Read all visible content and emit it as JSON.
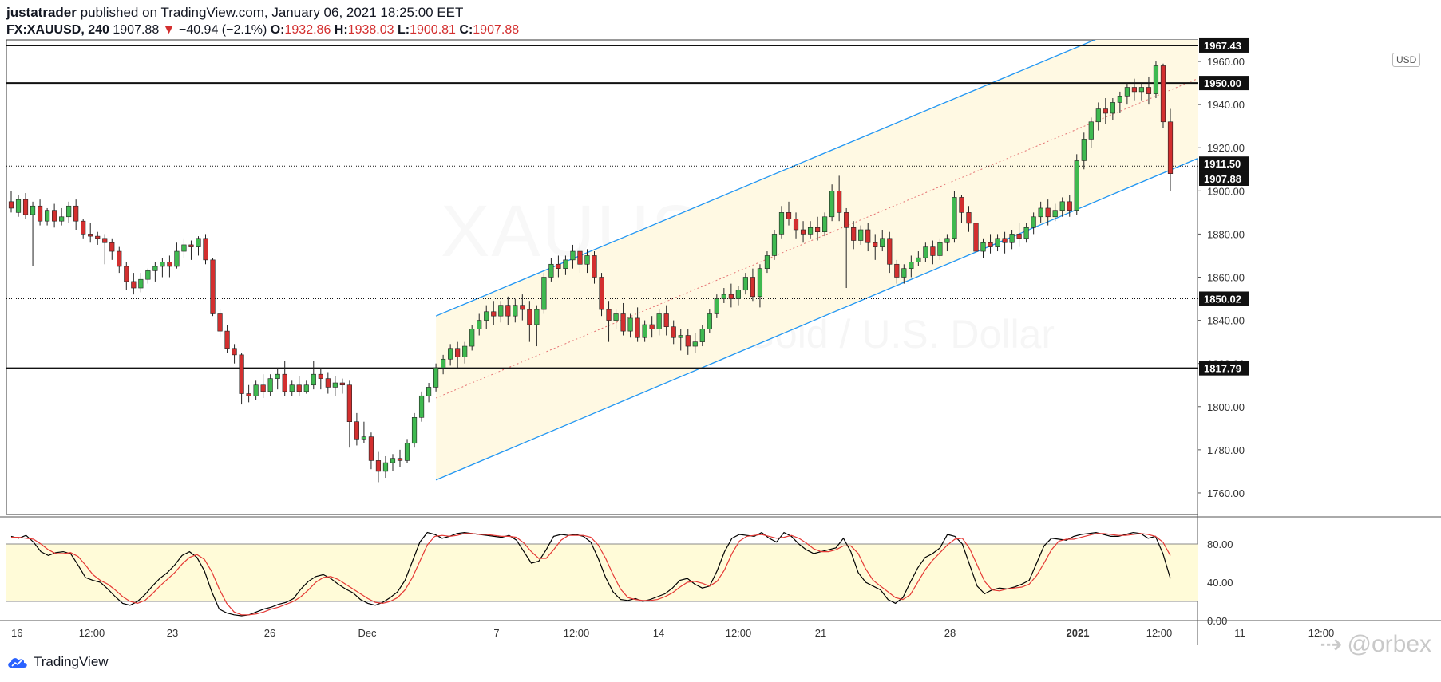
{
  "header": {
    "author": "justatrader",
    "published_text": "published on TradingView.com, January 06, 2021 18:25:00 EET",
    "symbol": "FX:XAUUSD, 240",
    "last": "1907.88",
    "change_arrow": "▼",
    "change": "−40.94 (−2.1%)",
    "open_label": "O:",
    "open": "1932.86",
    "high_label": "H:",
    "high": "1938.03",
    "low_label": "L:",
    "low": "1900.81",
    "close_label": "C:",
    "close": "1907.88"
  },
  "watermark": {
    "symbol": "XAUUSD",
    "description": "Gold / U.S. Dollar"
  },
  "currency_badge": "USD",
  "footer": {
    "brand": "TradingView",
    "credit": "@orbex"
  },
  "colors": {
    "up": "#26a69a",
    "up_body": "#3fb950",
    "down": "#d32f2f",
    "channel_line": "#2196f3",
    "channel_fill": "#fff9e3",
    "stoch_k": "#000000",
    "stoch_d": "#e53935",
    "stoch_band": "#fffbd8"
  },
  "chart_data": {
    "type": "candlestick",
    "symbol": "FX:XAUUSD",
    "interval": "240",
    "ylim": [
      1750,
      1970
    ],
    "y_ticks": [
      1760,
      1780,
      1800,
      1820,
      1840,
      1860,
      1880,
      1900,
      1920,
      1940,
      1960
    ],
    "x_ticks": [
      "16",
      "12:00",
      "23",
      "26",
      "Dec",
      "7",
      "12:00",
      "14",
      "12:00",
      "21",
      "28",
      "2021",
      "12:00",
      "11",
      "12:00"
    ],
    "price_labels": [
      "1967.43",
      "1950.00",
      "1911.50",
      "1907.88",
      "1850.02",
      "1817.79"
    ],
    "horizontal_levels": [
      {
        "price": 1967.43,
        "style": "solid"
      },
      {
        "price": 1950.0,
        "style": "solid"
      },
      {
        "price": 1911.5,
        "style": "dotted"
      },
      {
        "price": 1850.02,
        "style": "dotted"
      },
      {
        "price": 1817.79,
        "style": "solid"
      }
    ],
    "channel": {
      "upper": [
        [
          0,
          1842
        ],
        [
          100,
          1990
        ]
      ],
      "lower": [
        [
          0,
          1766
        ],
        [
          100,
          1915
        ]
      ],
      "mid": [
        [
          0,
          1804
        ],
        [
          100,
          1952
        ]
      ],
      "start_bar": 59
    },
    "candles": [
      [
        1895,
        1900,
        1892,
        1890
      ],
      [
        1890,
        1898,
        1896,
        1888
      ],
      [
        1896,
        1899,
        1889,
        1887
      ],
      [
        1889,
        1895,
        1893,
        1865
      ],
      [
        1893,
        1896,
        1886,
        1884
      ],
      [
        1886,
        1892,
        1891,
        1884
      ],
      [
        1891,
        1894,
        1886,
        1883
      ],
      [
        1886,
        1892,
        1888,
        1884
      ],
      [
        1888,
        1895,
        1893,
        1885
      ],
      [
        1893,
        1896,
        1886,
        1882
      ],
      [
        1886,
        1887,
        1880,
        1878
      ],
      [
        1880,
        1885,
        1879,
        1876
      ],
      [
        1879,
        1881,
        1878,
        1875
      ],
      [
        1878,
        1880,
        1876,
        1866
      ],
      [
        1876,
        1878,
        1872,
        1868
      ],
      [
        1872,
        1874,
        1865,
        1862
      ],
      [
        1865,
        1867,
        1858,
        1854
      ],
      [
        1858,
        1862,
        1855,
        1852
      ],
      [
        1855,
        1862,
        1859,
        1853
      ],
      [
        1859,
        1864,
        1863,
        1857
      ],
      [
        1863,
        1867,
        1865,
        1858
      ],
      [
        1865,
        1869,
        1867,
        1860
      ],
      [
        1867,
        1870,
        1865,
        1860
      ],
      [
        1865,
        1876,
        1872,
        1864
      ],
      [
        1872,
        1878,
        1875,
        1869
      ],
      [
        1875,
        1877,
        1874,
        1868
      ],
      [
        1874,
        1879,
        1878,
        1870
      ],
      [
        1878,
        1880,
        1868,
        1866
      ],
      [
        1868,
        1869,
        1843,
        1842
      ],
      [
        1843,
        1845,
        1835,
        1832
      ],
      [
        1835,
        1838,
        1827,
        1825
      ],
      [
        1827,
        1829,
        1824,
        1820
      ],
      [
        1824,
        1825,
        1806,
        1801
      ],
      [
        1806,
        1810,
        1805,
        1802
      ],
      [
        1805,
        1812,
        1810,
        1803
      ],
      [
        1810,
        1815,
        1807,
        1804
      ],
      [
        1807,
        1815,
        1813,
        1805
      ],
      [
        1813,
        1818,
        1815,
        1808
      ],
      [
        1815,
        1821,
        1807,
        1805
      ],
      [
        1807,
        1812,
        1810,
        1805
      ],
      [
        1810,
        1814,
        1807,
        1805
      ],
      [
        1807,
        1812,
        1810,
        1806
      ],
      [
        1810,
        1821,
        1815,
        1808
      ],
      [
        1815,
        1818,
        1813,
        1808
      ],
      [
        1813,
        1816,
        1809,
        1806
      ],
      [
        1809,
        1814,
        1811,
        1805
      ],
      [
        1811,
        1813,
        1810,
        1806
      ],
      [
        1810,
        1812,
        1793,
        1781
      ],
      [
        1793,
        1797,
        1785,
        1782
      ],
      [
        1785,
        1793,
        1786,
        1783
      ],
      [
        1786,
        1788,
        1775,
        1771
      ],
      [
        1775,
        1779,
        1770,
        1765
      ],
      [
        1770,
        1777,
        1774,
        1767
      ],
      [
        1774,
        1778,
        1776,
        1770
      ],
      [
        1776,
        1780,
        1775,
        1772
      ],
      [
        1775,
        1785,
        1783,
        1774
      ],
      [
        1783,
        1797,
        1795,
        1781
      ],
      [
        1795,
        1807,
        1805,
        1793
      ],
      [
        1805,
        1811,
        1809,
        1802
      ],
      [
        1809,
        1820,
        1818,
        1807
      ],
      [
        1818,
        1824,
        1822,
        1815
      ],
      [
        1822,
        1829,
        1827,
        1819
      ],
      [
        1827,
        1830,
        1823,
        1818
      ],
      [
        1823,
        1830,
        1828,
        1820
      ],
      [
        1828,
        1838,
        1836,
        1826
      ],
      [
        1836,
        1843,
        1840,
        1833
      ],
      [
        1840,
        1847,
        1844,
        1836
      ],
      [
        1844,
        1849,
        1842,
        1838
      ],
      [
        1842,
        1849,
        1847,
        1839
      ],
      [
        1847,
        1851,
        1842,
        1838
      ],
      [
        1842,
        1850,
        1847,
        1839
      ],
      [
        1847,
        1852,
        1845,
        1840
      ],
      [
        1845,
        1849,
        1838,
        1830
      ],
      [
        1838,
        1847,
        1845,
        1828
      ],
      [
        1845,
        1862,
        1860,
        1843
      ],
      [
        1860,
        1869,
        1866,
        1858
      ],
      [
        1866,
        1870,
        1864,
        1860
      ],
      [
        1864,
        1870,
        1868,
        1861
      ],
      [
        1868,
        1875,
        1872,
        1864
      ],
      [
        1872,
        1876,
        1866,
        1862
      ],
      [
        1866,
        1873,
        1870,
        1862
      ],
      [
        1870,
        1872,
        1860,
        1857
      ],
      [
        1860,
        1862,
        1845,
        1842
      ],
      [
        1845,
        1849,
        1840,
        1830
      ],
      [
        1840,
        1845,
        1843,
        1836
      ],
      [
        1843,
        1848,
        1835,
        1833
      ],
      [
        1835,
        1843,
        1841,
        1832
      ],
      [
        1841,
        1846,
        1832,
        1830
      ],
      [
        1832,
        1840,
        1838,
        1830
      ],
      [
        1838,
        1842,
        1836,
        1832
      ],
      [
        1836,
        1845,
        1843,
        1833
      ],
      [
        1843,
        1847,
        1837,
        1833
      ],
      [
        1837,
        1840,
        1832,
        1829
      ],
      [
        1832,
        1836,
        1833,
        1826
      ],
      [
        1833,
        1836,
        1828,
        1824
      ],
      [
        1828,
        1834,
        1830,
        1825
      ],
      [
        1830,
        1838,
        1836,
        1828
      ],
      [
        1836,
        1845,
        1843,
        1834
      ],
      [
        1843,
        1852,
        1850,
        1841
      ],
      [
        1850,
        1855,
        1852,
        1848
      ],
      [
        1852,
        1857,
        1850,
        1846
      ],
      [
        1850,
        1856,
        1854,
        1847
      ],
      [
        1854,
        1862,
        1860,
        1852
      ],
      [
        1860,
        1864,
        1851,
        1849
      ],
      [
        1851,
        1866,
        1864,
        1846
      ],
      [
        1864,
        1872,
        1870,
        1862
      ],
      [
        1870,
        1882,
        1880,
        1868
      ],
      [
        1880,
        1893,
        1890,
        1878
      ],
      [
        1890,
        1895,
        1887,
        1884
      ],
      [
        1887,
        1890,
        1882,
        1878
      ],
      [
        1882,
        1886,
        1880,
        1876
      ],
      [
        1880,
        1886,
        1883,
        1878
      ],
      [
        1883,
        1888,
        1881,
        1877
      ],
      [
        1881,
        1890,
        1888,
        1879
      ],
      [
        1888,
        1903,
        1900,
        1886
      ],
      [
        1900,
        1907,
        1890,
        1886
      ],
      [
        1890,
        1892,
        1883,
        1855
      ],
      [
        1883,
        1886,
        1877,
        1873
      ],
      [
        1877,
        1884,
        1882,
        1875
      ],
      [
        1882,
        1885,
        1876,
        1872
      ],
      [
        1876,
        1880,
        1874,
        1868
      ],
      [
        1874,
        1882,
        1878,
        1872
      ],
      [
        1878,
        1881,
        1866,
        1862
      ],
      [
        1866,
        1868,
        1860,
        1857
      ],
      [
        1860,
        1866,
        1864,
        1857
      ],
      [
        1864,
        1870,
        1867,
        1860
      ],
      [
        1867,
        1872,
        1869,
        1865
      ],
      [
        1869,
        1876,
        1874,
        1867
      ],
      [
        1874,
        1877,
        1870,
        1866
      ],
      [
        1870,
        1878,
        1876,
        1868
      ],
      [
        1876,
        1880,
        1878,
        1872
      ],
      [
        1878,
        1900,
        1897,
        1876
      ],
      [
        1897,
        1898,
        1890,
        1885
      ],
      [
        1890,
        1893,
        1885,
        1881
      ],
      [
        1885,
        1888,
        1872,
        1868
      ],
      [
        1872,
        1878,
        1876,
        1869
      ],
      [
        1876,
        1880,
        1874,
        1871
      ],
      [
        1874,
        1880,
        1878,
        1872
      ],
      [
        1878,
        1881,
        1876,
        1871
      ],
      [
        1876,
        1882,
        1880,
        1873
      ],
      [
        1880,
        1885,
        1878,
        1874
      ],
      [
        1878,
        1885,
        1883,
        1876
      ],
      [
        1883,
        1890,
        1888,
        1880
      ],
      [
        1888,
        1895,
        1892,
        1885
      ],
      [
        1892,
        1896,
        1888,
        1884
      ],
      [
        1888,
        1894,
        1891,
        1886
      ],
      [
        1891,
        1897,
        1895,
        1888
      ],
      [
        1895,
        1898,
        1891,
        1888
      ],
      [
        1891,
        1917,
        1914,
        1889
      ],
      [
        1914,
        1927,
        1924,
        1910
      ],
      [
        1924,
        1934,
        1932,
        1920
      ],
      [
        1932,
        1941,
        1938,
        1928
      ],
      [
        1938,
        1943,
        1936,
        1931
      ],
      [
        1936,
        1943,
        1941,
        1933
      ],
      [
        1941,
        1946,
        1944,
        1936
      ],
      [
        1944,
        1950,
        1948,
        1940
      ],
      [
        1948,
        1952,
        1946,
        1942
      ],
      [
        1946,
        1950,
        1948,
        1942
      ],
      [
        1948,
        1953,
        1945,
        1940
      ],
      [
        1945,
        1960,
        1958,
        1943
      ],
      [
        1958,
        1959,
        1932,
        1929
      ],
      [
        1932,
        1938,
        1908,
        1900
      ]
    ],
    "stochastic": {
      "ylim": [
        0,
        100
      ],
      "y_ticks": [
        0,
        40,
        80
      ],
      "bands": [
        20,
        80
      ],
      "k": [
        88,
        86,
        89,
        82,
        72,
        68,
        71,
        72,
        70,
        58,
        45,
        42,
        40,
        33,
        25,
        18,
        16,
        20,
        27,
        36,
        44,
        50,
        58,
        68,
        72,
        66,
        52,
        30,
        12,
        8,
        6,
        5,
        6,
        9,
        12,
        14,
        17,
        19,
        23,
        33,
        41,
        46,
        48,
        44,
        38,
        33,
        29,
        22,
        18,
        16,
        19,
        24,
        30,
        42,
        62,
        82,
        92,
        90,
        86,
        88,
        91,
        92,
        91,
        90,
        89,
        88,
        87,
        89,
        84,
        72,
        60,
        62,
        74,
        88,
        90,
        89,
        90,
        88,
        82,
        65,
        45,
        30,
        22,
        21,
        23,
        20,
        22,
        25,
        28,
        34,
        42,
        44,
        38,
        34,
        36,
        52,
        72,
        86,
        90,
        89,
        88,
        92,
        86,
        82,
        92,
        88,
        80,
        74,
        70,
        72,
        74,
        76,
        86,
        72,
        50,
        40,
        36,
        32,
        22,
        18,
        24,
        40,
        55,
        66,
        70,
        76,
        90,
        88,
        80,
        58,
        36,
        28,
        32,
        34,
        33,
        35,
        38,
        42,
        60,
        78,
        86,
        85,
        84,
        88,
        90,
        91,
        92,
        90,
        88,
        88,
        90,
        92,
        91,
        86,
        88,
        70,
        44
      ],
      "d": [
        87,
        87,
        86,
        85,
        80,
        74,
        70,
        70,
        71,
        67,
        58,
        48,
        42,
        38,
        32,
        25,
        20,
        18,
        21,
        28,
        36,
        43,
        50,
        59,
        66,
        69,
        64,
        51,
        33,
        18,
        9,
        6,
        6,
        7,
        9,
        12,
        14,
        17,
        20,
        25,
        32,
        40,
        45,
        46,
        43,
        38,
        33,
        28,
        23,
        19,
        18,
        20,
        24,
        32,
        45,
        62,
        79,
        88,
        89,
        88,
        89,
        91,
        91,
        90,
        90,
        89,
        88,
        88,
        87,
        81,
        72,
        65,
        65,
        74,
        84,
        89,
        89,
        89,
        87,
        79,
        65,
        48,
        33,
        24,
        22,
        21,
        21,
        22,
        25,
        29,
        35,
        40,
        41,
        39,
        36,
        41,
        53,
        70,
        83,
        88,
        89,
        90,
        88,
        86,
        87,
        89,
        86,
        81,
        75,
        72,
        72,
        74,
        78,
        78,
        70,
        54,
        42,
        36,
        30,
        24,
        22,
        27,
        40,
        53,
        63,
        71,
        79,
        85,
        86,
        75,
        58,
        41,
        32,
        31,
        33,
        34,
        35,
        38,
        47,
        60,
        74,
        83,
        85,
        85,
        87,
        89,
        91,
        91,
        90,
        89,
        89,
        90,
        91,
        90,
        88,
        82,
        68
      ]
    }
  }
}
